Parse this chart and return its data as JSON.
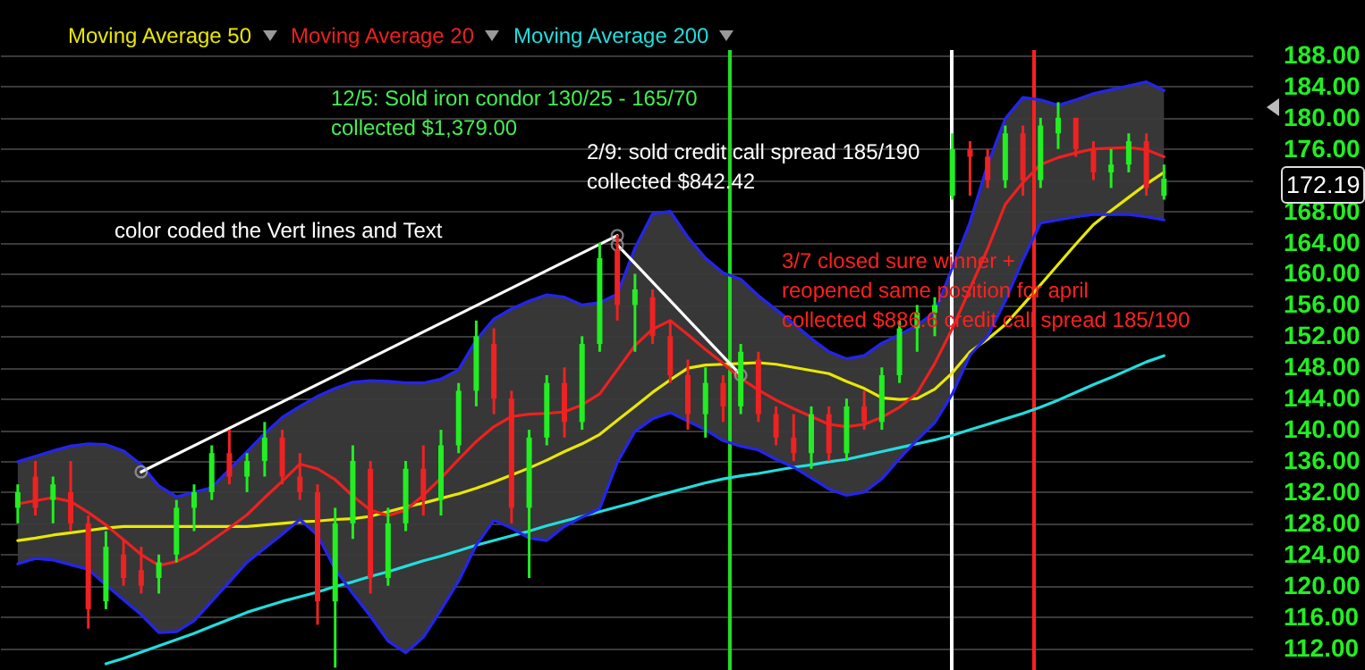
{
  "chart_data": {
    "type": "candlestick",
    "legend": "top left",
    "grid": "y",
    "tick_labels": "y",
    "categories": [
      null,
      null,
      null,
      null,
      null,
      null,
      null,
      null,
      null,
      null,
      null,
      null,
      null,
      null,
      null,
      null,
      null,
      null,
      null,
      null,
      null,
      null,
      null,
      null,
      null,
      null,
      null,
      null,
      null,
      null,
      null,
      null,
      null,
      null,
      null,
      null,
      null,
      null,
      null,
      null,
      null,
      null,
      null,
      null,
      null,
      null,
      null,
      null,
      null,
      null,
      null,
      null,
      null,
      null,
      null,
      null,
      null,
      null,
      null,
      null,
      null,
      null,
      null,
      null,
      null,
      null,
      null,
      null,
      null,
      null
    ],
    "ylim": [
      109.2,
      195.1
    ],
    "yticks": [
      {
        "value": 112,
        "label": "112.00"
      },
      {
        "value": 116,
        "label": "116.00"
      },
      {
        "value": 120,
        "label": "120.00"
      },
      {
        "value": 124,
        "label": "124.00"
      },
      {
        "value": 128,
        "label": "128.00"
      },
      {
        "value": 132,
        "label": "132.00"
      },
      {
        "value": 136,
        "label": "136.00"
      },
      {
        "value": 140,
        "label": "140.00"
      },
      {
        "value": 144,
        "label": "144.00"
      },
      {
        "value": 148,
        "label": "148.00"
      },
      {
        "value": 152,
        "label": "152.00"
      },
      {
        "value": 156,
        "label": "156.00"
      },
      {
        "value": 160,
        "label": "160.00"
      },
      {
        "value": 164,
        "label": "164.00"
      },
      {
        "value": 168,
        "label": "168.00"
      },
      {
        "value": 172,
        "label": null
      },
      {
        "value": 176,
        "label": "176.00"
      },
      {
        "value": 180,
        "label": "180.00"
      },
      {
        "value": 184,
        "label": "184.00"
      },
      {
        "value": 188,
        "label": "188.00"
      }
    ],
    "ohlc": [
      [
        130,
        133,
        128,
        132
      ],
      [
        134,
        136,
        129,
        130
      ],
      [
        131,
        134,
        128,
        133
      ],
      [
        132,
        136,
        127,
        128
      ],
      [
        128,
        129,
        114.5,
        117
      ],
      [
        118,
        127,
        117,
        125
      ],
      [
        124,
        126,
        120,
        121
      ],
      [
        122,
        125,
        119,
        120
      ],
      [
        121,
        124,
        119,
        123
      ],
      [
        124,
        131,
        123,
        130
      ],
      [
        130,
        133,
        127,
        132
      ],
      [
        132,
        138,
        131,
        137
      ],
      [
        137,
        140,
        133,
        134
      ],
      [
        134,
        137,
        132,
        136
      ],
      [
        136,
        141,
        134,
        139
      ],
      [
        139,
        140,
        133,
        134
      ],
      [
        134,
        137,
        131,
        132
      ],
      [
        132,
        133,
        115,
        118
      ],
      [
        118,
        130,
        109.5,
        128
      ],
      [
        128,
        138,
        126,
        136
      ],
      [
        135,
        136,
        119,
        121
      ],
      [
        121,
        130,
        120,
        128
      ],
      [
        128,
        136,
        127,
        135
      ],
      [
        135,
        138,
        129,
        131
      ],
      [
        131,
        140,
        129,
        138
      ],
      [
        138,
        146,
        137,
        145
      ],
      [
        145,
        154,
        143,
        152
      ],
      [
        151,
        153,
        142,
        144
      ],
      [
        144,
        145,
        128,
        130
      ],
      [
        130,
        140,
        121,
        139
      ],
      [
        139,
        147,
        138,
        146
      ],
      [
        146,
        148,
        139,
        141
      ],
      [
        141,
        152,
        140,
        151
      ],
      [
        151,
        164,
        150,
        162
      ],
      [
        163,
        165,
        154,
        156
      ],
      [
        156,
        160,
        150,
        158
      ],
      [
        157,
        158,
        151,
        152
      ],
      [
        152,
        154,
        146,
        147
      ],
      [
        147,
        149,
        140,
        142
      ],
      [
        142,
        148,
        139,
        146
      ],
      [
        146,
        147,
        141,
        143
      ],
      [
        143,
        151,
        142,
        150
      ],
      [
        149,
        150,
        141,
        142
      ],
      [
        142,
        143,
        138,
        139
      ],
      [
        139,
        142,
        136,
        137
      ],
      [
        137,
        143,
        135,
        142
      ],
      [
        142,
        143,
        136,
        137
      ],
      [
        137,
        144,
        136,
        143
      ],
      [
        143,
        145,
        140,
        141
      ],
      [
        141,
        148,
        140,
        147
      ],
      [
        147,
        154,
        146,
        153
      ],
      [
        153,
        156,
        150,
        155
      ],
      [
        155,
        157,
        152,
        156
      ],
      [
        170,
        178,
        169.5,
        176
      ],
      [
        176,
        177,
        170,
        175
      ],
      [
        175,
        176,
        171,
        172
      ],
      [
        172,
        179,
        171,
        178
      ],
      [
        178,
        179,
        170,
        172
      ],
      [
        172,
        180,
        171,
        179
      ],
      [
        178,
        182,
        176,
        180
      ],
      [
        180,
        180,
        175,
        176
      ],
      [
        176,
        177,
        172,
        173
      ],
      [
        173,
        176,
        171,
        174
      ],
      [
        174,
        178,
        173,
        177
      ],
      [
        177,
        178,
        170,
        171
      ],
      [
        170,
        174,
        169.5,
        172.19
      ],
      null,
      null,
      null,
      null
    ],
    "colors": [
      "#22ee22",
      "#ee2222",
      "#22ee22",
      "#ee2222",
      "#ee2222",
      "#22ee22",
      "#ee2222",
      "#ee2222",
      "#22ee22",
      "#22ee22",
      "#22ee22",
      "#22ee22",
      "#ee2222",
      "#22ee22",
      "#22ee22",
      "#ee2222",
      "#ee2222",
      "#ee2222",
      "#22ee22",
      "#22ee22",
      "#ee2222",
      "#22ee22",
      "#22ee22",
      "#ee2222",
      "#22ee22",
      "#22ee22",
      "#22ee22",
      "#ee2222",
      "#ee2222",
      "#22ee22",
      "#22ee22",
      "#ee2222",
      "#22ee22",
      "#22ee22",
      "#ee2222",
      "#22ee22",
      "#ee2222",
      "#ee2222",
      "#ee2222",
      "#22ee22",
      "#ee2222",
      "#22ee22",
      "#ee2222",
      "#ee2222",
      "#ee2222",
      "#22ee22",
      "#ee2222",
      "#22ee22",
      "#ee2222",
      "#22ee22",
      "#22ee22",
      "#22ee22",
      "#22ee22",
      "#22ee22",
      "#ee2222",
      "#ee2222",
      "#22ee22",
      "#ee2222",
      "#22ee22",
      "#22ee22",
      "#ee2222",
      "#ee2222",
      "#22ee22",
      "#22ee22",
      "#ee2222",
      "#22ee22",
      null,
      null,
      null,
      null
    ],
    "series": [
      {
        "name": "Moving Average 50",
        "type": "line",
        "color": "#e8e800",
        "values": [
          125.8,
          126.1,
          126.5,
          126.8,
          127.1,
          127.4,
          127.6,
          127.6,
          127.6,
          127.6,
          127.6,
          127.6,
          127.6,
          127.6,
          127.8,
          128.0,
          128.2,
          128.3,
          128.5,
          128.6,
          128.9,
          129.5,
          130.1,
          130.6,
          131.2,
          131.8,
          132.5,
          133.3,
          134.2,
          135.1,
          136.1,
          137.2,
          138.2,
          139.4,
          141.2,
          143.0,
          144.8,
          146.4,
          147.9,
          148.3,
          148.4,
          148.5,
          148.6,
          148.4,
          148.0,
          147.6,
          147.2,
          146.2,
          145.3,
          144.1,
          143.9,
          144.0,
          145.2,
          147.3,
          150.0,
          151.6,
          153.5,
          156.0,
          158.6,
          161.2,
          163.8,
          166.3,
          168.1,
          169.8,
          171.5,
          173.0,
          null,
          null,
          null,
          null
        ]
      },
      {
        "name": "Moving Average 20",
        "type": "line",
        "color": "#ee2020",
        "values": [
          130.5,
          130.9,
          131.3,
          130.8,
          129.4,
          127.8,
          125.9,
          124.0,
          122.6,
          123.1,
          124.2,
          125.8,
          127.4,
          129.1,
          131.3,
          133.4,
          135.6,
          135.0,
          133.6,
          131.5,
          129.7,
          129.0,
          129.7,
          131.6,
          133.8,
          136.2,
          138.5,
          140.4,
          141.7,
          142.0,
          142.1,
          142.3,
          143.2,
          144.6,
          147.7,
          150.8,
          152.9,
          154.0,
          152.2,
          150.3,
          148.5,
          146.6,
          145.1,
          143.8,
          142.7,
          141.7,
          140.7,
          140.4,
          140.7,
          141.6,
          142.9,
          144.7,
          148.5,
          153.0,
          158.1,
          163.2,
          168.9,
          171.7,
          174.0,
          174.9,
          175.5,
          176.0,
          176.1,
          176.2,
          175.9,
          175.0,
          null,
          null,
          null,
          null
        ],
        "upper": [
          135.9,
          136.6,
          137.3,
          137.9,
          138.2,
          138.1,
          137.3,
          135.5,
          132.8,
          131.4,
          132.0,
          132.6,
          134.9,
          137.2,
          139.5,
          141.6,
          143.0,
          144.3,
          145.3,
          146.1,
          146.3,
          146.2,
          146.0,
          146.0,
          146.5,
          147.7,
          151.5,
          154.2,
          155.5,
          156.5,
          157.3,
          157.0,
          156.0,
          156.3,
          157.4,
          163.3,
          167.7,
          168.0,
          164.7,
          162.0,
          160.1,
          159.3,
          157.2,
          155.4,
          153.6,
          151.7,
          150.0,
          149.1,
          149.5,
          151.1,
          152.2,
          153.4,
          155.1,
          160.8,
          166.6,
          174.0,
          179.9,
          182.6,
          182.3,
          181.6,
          182.3,
          183.1,
          183.6,
          184.1,
          184.6,
          183.5,
          null,
          null,
          null,
          null
        ],
        "lower": [
          122.8,
          123.5,
          123.3,
          122.7,
          122.1,
          120.1,
          118.2,
          116.3,
          114.0,
          114.1,
          115.5,
          118.0,
          120.5,
          123.0,
          124.8,
          126.6,
          128.5,
          126.5,
          122.1,
          119.0,
          116.1,
          112.9,
          111.4,
          113.4,
          116.9,
          120.6,
          125.2,
          128.4,
          127.4,
          126.1,
          125.8,
          127.6,
          128.8,
          129.9,
          135.8,
          139.8,
          141.4,
          142.2,
          141.1,
          140.0,
          138.6,
          137.9,
          137.4,
          136.2,
          135.2,
          133.8,
          132.4,
          131.6,
          132.0,
          133.7,
          136.3,
          138.7,
          140.9,
          144.6,
          149.6,
          152.0,
          156.5,
          161.8,
          166.5,
          166.9,
          167.3,
          167.6,
          167.6,
          167.6,
          167.3,
          166.9,
          null,
          null,
          null,
          null
        ]
      },
      {
        "name": "Moving Average 200",
        "type": "line",
        "color": "#22dddd",
        "values": [
          null,
          null,
          null,
          null,
          null,
          110.0,
          110.7,
          111.5,
          112.3,
          113.1,
          113.9,
          114.8,
          115.7,
          116.6,
          117.3,
          118.0,
          118.6,
          119.2,
          119.9,
          120.5,
          121.2,
          121.8,
          122.5,
          123.2,
          123.8,
          124.5,
          125.2,
          125.8,
          126.4,
          127.0,
          127.7,
          128.3,
          128.9,
          129.5,
          130.1,
          130.7,
          131.4,
          132.0,
          132.6,
          133.2,
          133.7,
          134.1,
          134.4,
          134.8,
          135.2,
          135.5,
          135.9,
          136.2,
          136.7,
          137.2,
          137.7,
          138.2,
          138.7,
          139.3,
          140.0,
          140.7,
          141.4,
          142.1,
          142.9,
          143.8,
          144.8,
          145.8,
          146.7,
          147.7,
          148.7,
          149.5,
          null,
          null,
          null,
          null
        ]
      },
      {
        "type": "line",
        "color": "#2424f0",
        "values": [
          135.9,
          136.6,
          137.3,
          137.9,
          138.2,
          138.1,
          137.3,
          135.5,
          132.8,
          131.4,
          132.0,
          132.6,
          134.9,
          137.2,
          139.5,
          141.6,
          143.0,
          144.3,
          145.3,
          146.1,
          146.3,
          146.2,
          146.0,
          146.0,
          146.5,
          147.7,
          151.5,
          154.2,
          155.5,
          156.5,
          157.3,
          157.0,
          156.0,
          156.3,
          157.4,
          163.3,
          167.7,
          168.0,
          164.7,
          162.0,
          160.1,
          159.3,
          157.2,
          155.4,
          153.6,
          151.7,
          150.0,
          149.1,
          149.5,
          151.1,
          152.2,
          153.4,
          155.1,
          160.8,
          166.6,
          174.0,
          179.9,
          182.6,
          182.3,
          181.6,
          182.3,
          183.1,
          183.6,
          184.1,
          184.6,
          183.5,
          null,
          null,
          null,
          null
        ]
      },
      {
        "type": "line",
        "color": "#2424f0",
        "values": [
          122.8,
          123.5,
          123.3,
          122.7,
          122.1,
          120.1,
          118.2,
          116.3,
          114.0,
          114.1,
          115.5,
          118.0,
          120.5,
          123.0,
          124.8,
          126.6,
          128.5,
          126.5,
          122.1,
          119.0,
          116.1,
          112.9,
          111.4,
          113.4,
          116.9,
          120.6,
          125.2,
          128.4,
          127.4,
          126.1,
          125.8,
          127.6,
          128.8,
          129.9,
          135.8,
          139.8,
          141.4,
          142.2,
          141.1,
          140.0,
          138.6,
          137.9,
          137.4,
          136.2,
          135.2,
          133.8,
          132.4,
          131.6,
          132.0,
          133.7,
          136.3,
          138.7,
          140.9,
          144.6,
          149.6,
          152.0,
          156.5,
          161.8,
          166.5,
          166.9,
          167.3,
          167.6,
          167.6,
          167.6,
          167.3,
          166.9,
          null,
          null,
          null,
          null
        ]
      },
      {
        "type": "line",
        "color": "#ffffff",
        "marker": "circle",
        "values": [
          null,
          null,
          null,
          null,
          null,
          null,
          null,
          134.6,
          null,
          null,
          null,
          null,
          null,
          null,
          null,
          null,
          null,
          null,
          null,
          null,
          null,
          null,
          null,
          null,
          null,
          null,
          null,
          null,
          null,
          null,
          null,
          null,
          null,
          null,
          164.9,
          null,
          null,
          null,
          null,
          null,
          null,
          null,
          null,
          null,
          null,
          null,
          null,
          null,
          null,
          null,
          null,
          null,
          null,
          null,
          null,
          null,
          null,
          null,
          null,
          null,
          null,
          null,
          null,
          null,
          null,
          null,
          null,
          null,
          null,
          null
        ]
      },
      {
        "type": "line",
        "color": "#ffffff",
        "marker": "circle",
        "values": [
          null,
          null,
          null,
          null,
          null,
          null,
          null,
          null,
          null,
          null,
          null,
          null,
          null,
          null,
          null,
          null,
          null,
          null,
          null,
          null,
          null,
          null,
          null,
          null,
          null,
          null,
          null,
          null,
          null,
          null,
          null,
          null,
          null,
          null,
          163.7,
          null,
          null,
          null,
          null,
          null,
          null,
          147.0,
          null,
          null,
          null,
          null,
          null,
          null,
          null,
          null,
          null,
          null,
          null,
          null,
          null,
          null,
          null,
          null,
          null,
          null,
          null,
          null,
          null,
          null,
          null,
          null,
          null,
          null,
          null,
          null
        ]
      }
    ],
    "annotations": [
      "12/5: Sold iron condor 130/25 - 165/70\ncollected $1,379.00",
      "2/9: sold credit call spread 185/190\ncollected $842.42",
      "3/7 closed sure winner +\nreopened same position for april\ncollected $886.6 credit call spread 185/190",
      "color coded the Vert lines and Text",
      "172.19"
    ]
  }
}
